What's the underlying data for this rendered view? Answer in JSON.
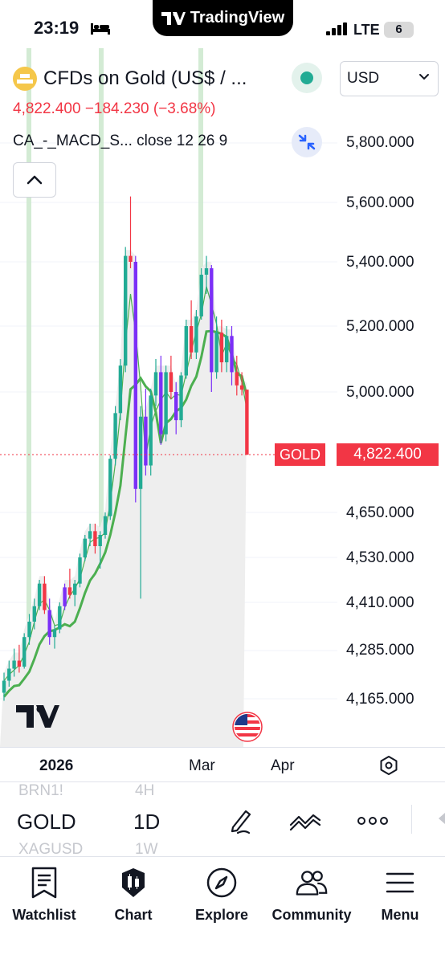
{
  "status": {
    "time": "23:19",
    "app_pill": "TradingView",
    "network": "LTE",
    "battery": "6"
  },
  "symbol": {
    "title": "CFDs on Gold (US$ / ...",
    "last": "4,822.400",
    "change": "−184.230",
    "change_pct": "(−3.68%)",
    "indicator": "CA_-_MACD_S...",
    "indicator_params": "close 12 26 9",
    "currency": "USD"
  },
  "axis": {
    "labels": [
      "5,800.000",
      "5,600.000",
      "5,400.000",
      "5,200.000",
      "5,000.000",
      "4,822.400",
      "4,650.000",
      "4,530.000",
      "4,410.000",
      "4,285.000",
      "4,165.000"
    ],
    "price_tag_symbol": "GOLD",
    "price_tag_value": "4,822.400"
  },
  "time_axis": {
    "labels": [
      "2026",
      "Mar",
      "Apr"
    ]
  },
  "toolbar": {
    "symbol_prev": "BRN1!",
    "symbol_current": "GOLD",
    "symbol_next": "XAGUSD",
    "interval_prev": "4H",
    "interval_current": "1D",
    "interval_next": "1W"
  },
  "nav": {
    "items": [
      "Watchlist",
      "Chart",
      "Explore",
      "Community",
      "Menu"
    ]
  },
  "colors": {
    "up": "#22ab94",
    "down": "#f23645",
    "highlight_bar": "#7b2ff7",
    "ma_fast": "#4caf50",
    "ma_slow": "#4caf50",
    "session_band": "#c8e6c9"
  },
  "chart_data": {
    "type": "candlestick",
    "symbol": "GOLD",
    "interval": "1D",
    "yaxis": "4,165 – 5,800",
    "series": [
      {
        "name": "OHLC",
        "values": [
          [
            4180,
            4230,
            4160,
            4210
          ],
          [
            4210,
            4260,
            4195,
            4240
          ],
          [
            4240,
            4290,
            4220,
            4260
          ],
          [
            4260,
            4300,
            4230,
            4245
          ],
          [
            4245,
            4330,
            4240,
            4320
          ],
          [
            4320,
            4380,
            4300,
            4360
          ],
          [
            4360,
            4420,
            4340,
            4400
          ],
          [
            4400,
            4470,
            4390,
            4460
          ],
          [
            4460,
            4480,
            4380,
            4390
          ],
          [
            4390,
            4420,
            4300,
            4320
          ],
          [
            4320,
            4350,
            4290,
            4340
          ],
          [
            4340,
            4410,
            4330,
            4400
          ],
          [
            4400,
            4460,
            4390,
            4450
          ],
          [
            4450,
            4500,
            4420,
            4430
          ],
          [
            4430,
            4470,
            4400,
            4460
          ],
          [
            4460,
            4540,
            4450,
            4530
          ],
          [
            4530,
            4590,
            4520,
            4580
          ],
          [
            4580,
            4620,
            4560,
            4600
          ],
          [
            4600,
            4620,
            4540,
            4560
          ],
          [
            4560,
            4600,
            4500,
            4590
          ],
          [
            4590,
            4650,
            4580,
            4640
          ],
          [
            4640,
            4820,
            4630,
            4810
          ],
          [
            4810,
            4960,
            4790,
            4940
          ],
          [
            4940,
            5100,
            4920,
            5080
          ],
          [
            5080,
            5450,
            5060,
            5420
          ],
          [
            5420,
            5620,
            5380,
            5400
          ],
          [
            5400,
            5420,
            4680,
            4720
          ],
          [
            4720,
            4960,
            4420,
            4930
          ],
          [
            4930,
            5010,
            4760,
            4790
          ],
          [
            4790,
            5010,
            4760,
            4990
          ],
          [
            4990,
            5100,
            4960,
            5060
          ],
          [
            5060,
            5110,
            4850,
            4880
          ],
          [
            4880,
            5080,
            4860,
            5060
          ],
          [
            5060,
            5110,
            4980,
            5000
          ],
          [
            5000,
            5030,
            4880,
            4920
          ],
          [
            4920,
            5060,
            4900,
            5050
          ],
          [
            5050,
            5220,
            5040,
            5200
          ],
          [
            5200,
            5280,
            5100,
            5120
          ],
          [
            5120,
            5250,
            5100,
            5230
          ],
          [
            5230,
            5380,
            5220,
            5360
          ],
          [
            5360,
            5420,
            5300,
            5380
          ],
          [
            5380,
            5390,
            5000,
            5060
          ],
          [
            5060,
            5230,
            5040,
            5180
          ],
          [
            5180,
            5220,
            5060,
            5090
          ],
          [
            5090,
            5200,
            5060,
            5170
          ],
          [
            5170,
            5200,
            5020,
            5060
          ],
          [
            5060,
            5110,
            4990,
            5020
          ],
          [
            5020,
            5060,
            4990,
            5007
          ],
          [
            5007,
            5007,
            4822,
            4822
          ]
        ]
      }
    ]
  }
}
